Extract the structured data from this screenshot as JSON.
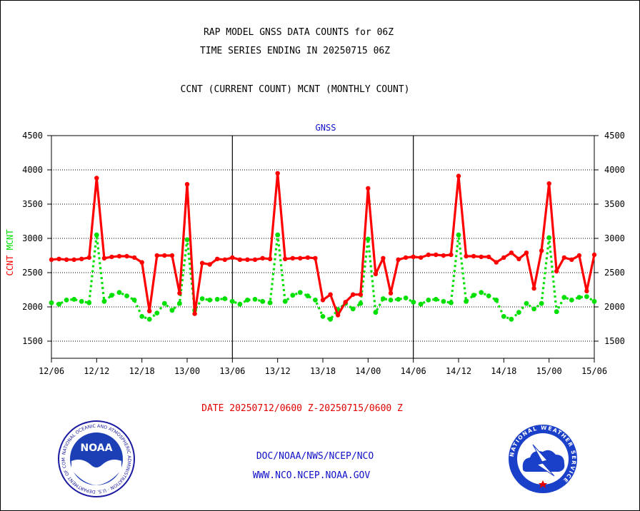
{
  "header": {
    "title_line1": "RAP MODEL GNSS DATA COUNTS for 06Z",
    "title_line2": "TIME SERIES ENDING IN 20250715 06Z",
    "subtitle": "CCNT (CURRENT COUNT) MCNT (MONTHLY COUNT)"
  },
  "footer": {
    "date_range": "DATE 20250712/0600 Z-20250715/0600 Z",
    "org_line": "DOC/NOAA/NWS/NCEP/NCO",
    "url_line": "WWW.NCO.NCEP.NOAA.GOV"
  },
  "logos": {
    "noaa": {
      "center_text": "NOAA",
      "ring_text": "NATIONAL OCEANIC AND ATMOSPHERIC ADMINISTRATION · U.S. DEPARTMENT OF COMMERCE"
    },
    "nws": {
      "ring_text": "NATIONAL WEATHER SERVICE"
    }
  },
  "colors": {
    "ccnt": "#ff0000",
    "mcnt": "#00e000",
    "panel_title": "#1010c8",
    "axis": "#000000"
  },
  "chart_data": {
    "type": "line",
    "title": "GNSS",
    "ylabel_left": [
      "CCNT",
      "MCNT"
    ],
    "ylim": [
      1250,
      4500
    ],
    "yticks": [
      1500,
      2000,
      2500,
      3000,
      3500,
      4000,
      4500
    ],
    "x_tick_labels": [
      "12/06",
      "12/12",
      "12/18",
      "13/00",
      "13/06",
      "13/12",
      "13/18",
      "14/00",
      "14/06",
      "14/12",
      "14/18",
      "15/00",
      "15/06"
    ],
    "panel_separators": [
      "13/06",
      "14/06"
    ],
    "grid": true,
    "x_hours": [
      0,
      1,
      2,
      3,
      4,
      5,
      6,
      7,
      8,
      9,
      10,
      11,
      12,
      13,
      14,
      15,
      16,
      17,
      18,
      19,
      20,
      21,
      22,
      23,
      24,
      25,
      26,
      27,
      28,
      29,
      30,
      31,
      32,
      33,
      34,
      35,
      36,
      37,
      38,
      39,
      40,
      41,
      42,
      43,
      44,
      45,
      46,
      47,
      48,
      49,
      50,
      51,
      52,
      53,
      54,
      55,
      56,
      57,
      58,
      59,
      60,
      61,
      62,
      63,
      64,
      65,
      66,
      67,
      68,
      69,
      70,
      71,
      72
    ],
    "series": [
      {
        "name": "CCNT",
        "style": "solid",
        "values": [
          2690,
          2700,
          2690,
          2690,
          2700,
          2720,
          3880,
          2710,
          2730,
          2740,
          2740,
          2720,
          2650,
          1940,
          2750,
          2750,
          2750,
          2200,
          3790,
          1900,
          2640,
          2620,
          2700,
          2690,
          2720,
          2690,
          2690,
          2690,
          2710,
          2700,
          3950,
          2700,
          2710,
          2710,
          2720,
          2710,
          2100,
          2180,
          1880,
          2070,
          2180,
          2180,
          3730,
          2480,
          2710,
          2200,
          2690,
          2720,
          2730,
          2720,
          2760,
          2760,
          2750,
          2760,
          3910,
          2740,
          2740,
          2730,
          2730,
          2650,
          2720,
          2790,
          2700,
          2790,
          2270,
          2820,
          3800,
          2520,
          2720,
          2690,
          2750,
          2230,
          2760
        ]
      },
      {
        "name": "MCNT",
        "style": "dotted",
        "values": [
          2060,
          2040,
          2100,
          2110,
          2080,
          2060,
          3050,
          2080,
          2170,
          2210,
          2160,
          2100,
          1860,
          1820,
          1910,
          2050,
          1950,
          2050,
          2980,
          1950,
          2120,
          2100,
          2110,
          2120,
          2080,
          2040,
          2100,
          2110,
          2080,
          2060,
          3050,
          2080,
          2170,
          2210,
          2160,
          2100,
          1860,
          1820,
          1960,
          2050,
          1970,
          2050,
          2990,
          1920,
          2120,
          2100,
          2110,
          2130,
          2070,
          2040,
          2100,
          2110,
          2080,
          2060,
          3050,
          2080,
          2170,
          2210,
          2160,
          2100,
          1860,
          1820,
          1920,
          2050,
          1970,
          2050,
          3010,
          1930,
          2140,
          2100,
          2140,
          2150,
          2080
        ]
      }
    ]
  }
}
